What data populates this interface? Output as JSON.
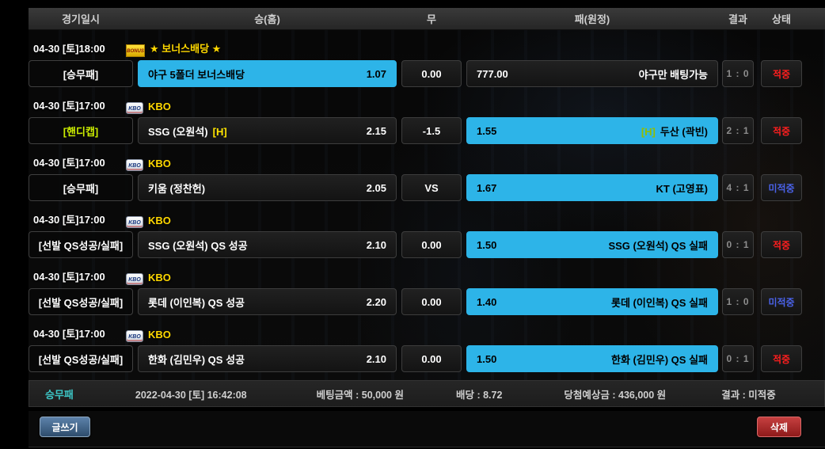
{
  "colors": {
    "selected_cyan": "#2db4e8",
    "hit_red": "#ff1e1e",
    "miss_blue": "#4a62e8",
    "league_yellow": "#ffd800",
    "handicap_green": "#ccee00"
  },
  "icons": {
    "bonus": "BONUS",
    "kbo_logo": "KBO"
  },
  "header": {
    "columns": [
      "경기일시",
      "승(홈)",
      "무",
      "패(원정)",
      "결과",
      "상태"
    ]
  },
  "bets": [
    {
      "date": "04-30 [토]18:00",
      "league": "★ 보너스배당 ★",
      "type": "[승무패]",
      "home": {
        "name": "야구 5폴더 보너스배당",
        "odds": "1.07"
      },
      "draw": "0.00",
      "away": {
        "odds": "777.00",
        "name": "야구만 배팅가능"
      },
      "result": "1 : 0",
      "status": "적중"
    },
    {
      "date": "04-30 [토]17:00",
      "league": "KBO",
      "type": "[핸디캡]",
      "home": {
        "name": "SSG (오원석)",
        "tag": "[H]",
        "odds": "2.15"
      },
      "draw": "-1.5",
      "away": {
        "odds": "1.55",
        "tag": "[H]",
        "name": "두산 (곽빈)"
      },
      "result": "2 : 1",
      "status": "적중"
    },
    {
      "date": "04-30 [토]17:00",
      "league": "KBO",
      "type": "[승무패]",
      "home": {
        "name": "키움 (정찬헌)",
        "odds": "2.05"
      },
      "draw": "VS",
      "away": {
        "odds": "1.67",
        "name": "KT (고영표)"
      },
      "result": "4 : 1",
      "status": "미적중"
    },
    {
      "date": "04-30 [토]17:00",
      "league": "KBO",
      "type": "[선발 QS성공/실패]",
      "home": {
        "name": "SSG (오원석) QS 성공",
        "odds": "2.10"
      },
      "draw": "0.00",
      "away": {
        "odds": "1.50",
        "name": "SSG (오원석) QS 실패"
      },
      "result": "0 : 1",
      "status": "적중"
    },
    {
      "date": "04-30 [토]17:00",
      "league": "KBO",
      "type": "[선발 QS성공/실패]",
      "home": {
        "name": "롯데 (이인복) QS 성공",
        "odds": "2.20"
      },
      "draw": "0.00",
      "away": {
        "odds": "1.40",
        "name": "롯데 (이인복) QS 실패"
      },
      "result": "1 : 0",
      "status": "미적중"
    },
    {
      "date": "04-30 [토]17:00",
      "league": "KBO",
      "type": "[선발 QS성공/실패]",
      "home": {
        "name": "한화 (김민우) QS 성공",
        "odds": "2.10"
      },
      "draw": "0.00",
      "away": {
        "odds": "1.50",
        "name": "한화 (김민우) QS 실패"
      },
      "result": "0 : 1",
      "status": "적중"
    }
  ],
  "summary": {
    "type": "승무패",
    "datetime": "2022-04-30 [토] 16:42:08",
    "bet_amount": "베팅금액 : 50,000 원",
    "odds": "배당 : 8.72",
    "expected": "당첨예상금 : 436,000 원",
    "result": "결과 : 미적중"
  },
  "footer": {
    "write_label": "글쓰기",
    "delete_label": "삭제"
  }
}
